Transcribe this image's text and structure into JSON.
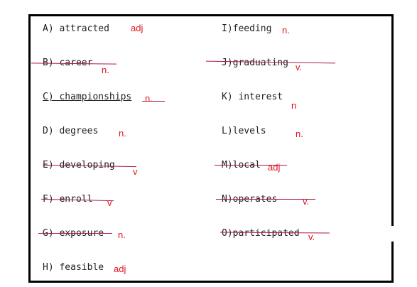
{
  "items": [
    {
      "id": "A",
      "word": "A) attracted",
      "tag": "adj",
      "struck": false,
      "underlined": false
    },
    {
      "id": "B",
      "word": "B) career",
      "tag": "n.",
      "struck": true,
      "underlined": false
    },
    {
      "id": "C",
      "word": "C) championships",
      "tag": "n.",
      "struck": false,
      "underlined": true
    },
    {
      "id": "D",
      "word": "D) degrees",
      "tag": "n.",
      "struck": false,
      "underlined": false
    },
    {
      "id": "E",
      "word": "E) developing",
      "tag": "v",
      "struck": true,
      "underlined": false
    },
    {
      "id": "F",
      "word": "F) enroll",
      "tag": "v",
      "struck": true,
      "underlined": false
    },
    {
      "id": "G",
      "word": "G) exposure",
      "tag": "n.",
      "struck": true,
      "underlined": false
    },
    {
      "id": "H",
      "word": "H) feasible",
      "tag": "adj",
      "struck": false,
      "underlined": false
    },
    {
      "id": "I",
      "word": "I)feeding",
      "tag": "n.",
      "struck": false,
      "underlined": false
    },
    {
      "id": "J",
      "word": "J)graduating",
      "tag": "v.",
      "struck": true,
      "underlined": false
    },
    {
      "id": "K",
      "word": "K) interest",
      "tag": "n",
      "struck": false,
      "underlined": false
    },
    {
      "id": "L",
      "word": "L)levels",
      "tag": "n.",
      "struck": false,
      "underlined": false
    },
    {
      "id": "M",
      "word": "M)local",
      "tag": "adj",
      "struck": true,
      "underlined": false
    },
    {
      "id": "N",
      "word": "N)operates",
      "tag": "v.",
      "struck": true,
      "underlined": false
    },
    {
      "id": "O",
      "word": "O)participated",
      "tag": "v.",
      "struck": true,
      "underlined": false
    }
  ],
  "colors": {
    "text": "#222222",
    "annotation": "#e0141e",
    "strike": "#b0184a",
    "border": "#000000"
  }
}
